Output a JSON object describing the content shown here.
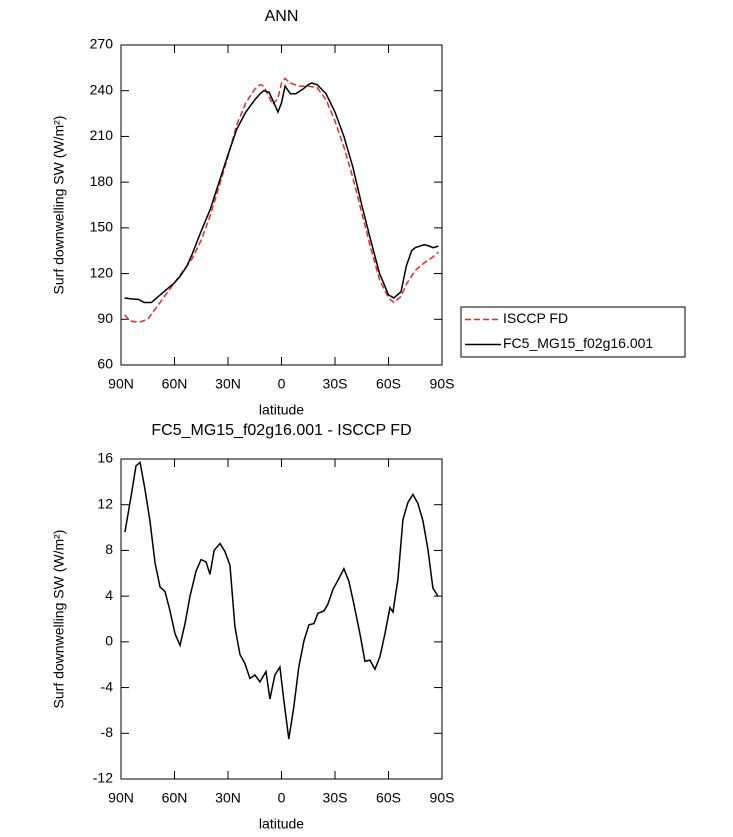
{
  "chart_data": [
    {
      "type": "line",
      "title": "ANN",
      "xlabel": "latitude",
      "ylabel": "Surf downwelling SW (W/m²)",
      "xlim": [
        90,
        -90
      ],
      "xticks": [
        {
          "value": 90,
          "label": "90N"
        },
        {
          "value": 60,
          "label": "60N"
        },
        {
          "value": 30,
          "label": "30N"
        },
        0,
        {
          "value": -30,
          "label": "30S"
        },
        {
          "value": -60,
          "label": "60S"
        },
        {
          "value": -90,
          "label": "90S"
        }
      ],
      "ylim": [
        60,
        270
      ],
      "yticks": [
        60,
        90,
        120,
        150,
        180,
        210,
        240,
        270
      ],
      "legend": "right",
      "series": [
        {
          "name": "ISCCP FD",
          "color": "#e8282a",
          "linestyle": "dashed",
          "x": [
            88,
            85,
            80,
            75,
            70,
            65,
            60,
            55,
            50,
            45,
            40,
            35,
            30,
            25,
            20,
            15,
            12,
            10,
            7,
            5,
            2,
            0,
            -2,
            -5,
            -10,
            -15,
            -20,
            -25,
            -30,
            -35,
            -40,
            -45,
            -50,
            -55,
            -60,
            -63,
            -67,
            -70,
            -75,
            -80,
            -85,
            -88
          ],
          "values": [
            93,
            89,
            88,
            90,
            98,
            106,
            114,
            122,
            130,
            142,
            158,
            177,
            197,
            218,
            232,
            241,
            244,
            243,
            236,
            231,
            235,
            245,
            248,
            245,
            243,
            243,
            242,
            234,
            220,
            203,
            183,
            160,
            137,
            116,
            104,
            101,
            105,
            113,
            122,
            127,
            131,
            134
          ]
        },
        {
          "name": "FC5_MG15_f02g16.001",
          "color": "#000000",
          "linestyle": "solid",
          "x": [
            88,
            85,
            80,
            77,
            73,
            70,
            65,
            60,
            57,
            53,
            50,
            45,
            40,
            35,
            30,
            25,
            20,
            15,
            12,
            10,
            7,
            5,
            2,
            0,
            -2,
            -5,
            -8,
            -12,
            -15,
            -17,
            -20,
            -25,
            -30,
            -35,
            -40,
            -45,
            -50,
            -55,
            -60,
            -63,
            -67,
            -70,
            -73,
            -75,
            -80,
            -83,
            -85,
            -88
          ],
          "values": [
            104,
            103.5,
            103,
            101,
            101,
            104,
            109,
            114,
            118,
            125,
            133,
            148,
            162,
            180,
            198,
            215,
            226,
            234,
            238,
            240,
            239,
            234,
            226,
            232,
            243,
            238,
            238,
            241,
            244,
            245,
            244,
            238,
            226,
            210,
            190,
            165,
            142,
            120,
            106,
            104,
            108,
            125,
            135,
            137,
            139,
            138,
            137,
            138
          ]
        }
      ]
    },
    {
      "type": "line",
      "title": "FC5_MG15_f02g16.001 - ISCCP FD",
      "xlabel": "latitude",
      "ylabel": "Surf downwelling SW (W/m²)",
      "xlim": [
        90,
        -90
      ],
      "xticks": [
        {
          "value": 90,
          "label": "90N"
        },
        {
          "value": 60,
          "label": "60N"
        },
        {
          "value": 30,
          "label": "30N"
        },
        0,
        {
          "value": -30,
          "label": "30S"
        },
        {
          "value": -60,
          "label": "60S"
        },
        {
          "value": -90,
          "label": "90S"
        }
      ],
      "ylim": [
        -12,
        16
      ],
      "yticks": [
        -12,
        -8,
        -4,
        0,
        4,
        8,
        12,
        16
      ],
      "series": [
        {
          "color": "#000000",
          "linestyle": "solid",
          "x": [
            87.8,
            84.4,
            81.6,
            79.3,
            76.5,
            73.7,
            70.9,
            68.1,
            65.3,
            62.5,
            59.7,
            56.9,
            54.1,
            51.3,
            47.9,
            45.1,
            42.3,
            40.1,
            37.8,
            34.5,
            31.7,
            28.9,
            26.1,
            23.3,
            20.5,
            17.7,
            14.9,
            12.1,
            8.7,
            6.5,
            3.7,
            0.9,
            -1.3,
            -4.1,
            -6.9,
            -9.7,
            -12.6,
            -15.4,
            -18.2,
            -20.4,
            -23.8,
            -26,
            -28.9,
            -31.7,
            -35,
            -37.8,
            -40.6,
            -44,
            -46.8,
            -49.6,
            -52.4,
            -55.2,
            -58,
            -60.8,
            -62.5,
            -65.3,
            -68.1,
            -70.9,
            -73.7,
            -76.5,
            -79.3,
            -82.1,
            -84.9,
            -87.7
          ],
          "values": [
            9.6,
            12.7,
            15.4,
            15.7,
            13.3,
            10.5,
            6.9,
            4.8,
            4.4,
            2.7,
            0.7,
            -0.3,
            1.6,
            4.0,
            6.2,
            7.2,
            7.0,
            5.9,
            8.0,
            8.6,
            7.9,
            6.7,
            1.3,
            -1.1,
            -1.9,
            -3.2,
            -2.9,
            -3.5,
            -2.6,
            -5.0,
            -2.9,
            -2.2,
            -5.1,
            -8.5,
            -5.7,
            -2.2,
            0.1,
            1.5,
            1.6,
            2.5,
            2.7,
            3.3,
            4.6,
            5.4,
            6.4,
            5.3,
            3.3,
            0.7,
            -1.7,
            -1.6,
            -2.4,
            -1.3,
            0.7,
            3.0,
            2.6,
            5.5,
            10.7,
            12.2,
            12.9,
            12.1,
            10.6,
            8.1,
            4.7,
            4.0
          ]
        }
      ]
    }
  ]
}
